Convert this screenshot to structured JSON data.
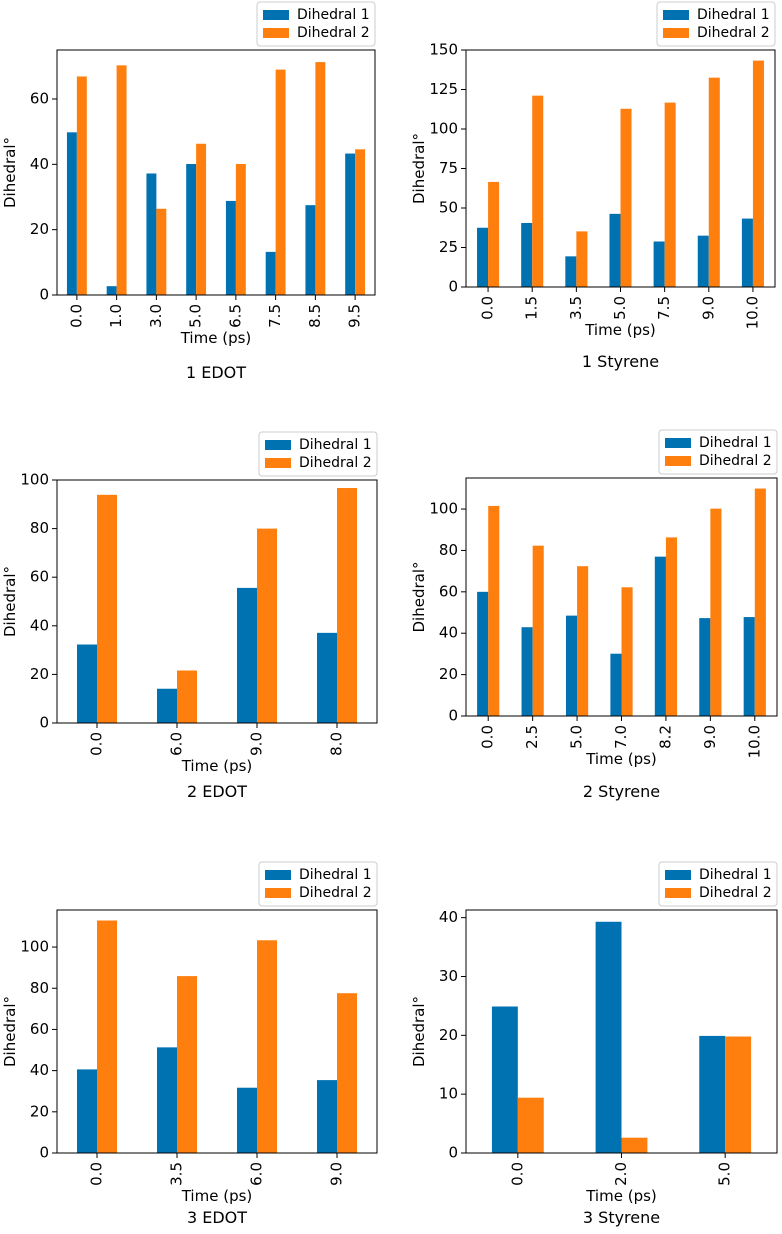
{
  "colors": {
    "dihedral_1": "#0072b2",
    "dihedral_2": "#ff7f0e"
  },
  "chart_data": [
    {
      "type": "bar",
      "caption": "1 EDOT",
      "xlabel": "Time (ps)",
      "ylabel": "Dihedral°",
      "ylim": [
        0,
        75
      ],
      "yticks": [
        0,
        20,
        40,
        60
      ],
      "legend_position": "top-right",
      "categories": [
        "0.0",
        "1.0",
        "3.0",
        "5.0",
        "6.5",
        "7.5",
        "8.5",
        "9.5"
      ],
      "series": [
        {
          "name": "Dihedral 1",
          "values": [
            49.8,
            2.7,
            37.2,
            40.1,
            28.8,
            13.2,
            27.5,
            43.3
          ]
        },
        {
          "name": "Dihedral 2",
          "values": [
            66.9,
            70.3,
            26.4,
            46.3,
            40.1,
            69.0,
            71.3,
            44.6
          ]
        }
      ]
    },
    {
      "type": "bar",
      "caption": "1 Styrene",
      "xlabel": "Time (ps)",
      "ylabel": "Dihedral°",
      "ylim": [
        0,
        150
      ],
      "yticks": [
        0,
        25,
        50,
        75,
        100,
        125,
        150
      ],
      "legend_position": "top-right",
      "categories": [
        "0.0",
        "1.5",
        "3.5",
        "5.0",
        "7.5",
        "9.0",
        "10.0"
      ],
      "series": [
        {
          "name": "Dihedral 1",
          "values": [
            37.5,
            40.5,
            19.4,
            46.3,
            28.8,
            32.5,
            43.3
          ]
        },
        {
          "name": "Dihedral 2",
          "values": [
            66.5,
            121.1,
            35.2,
            112.8,
            116.7,
            132.5,
            143.3
          ]
        }
      ]
    },
    {
      "type": "bar",
      "caption": "2 EDOT",
      "xlabel": "Time (ps)",
      "ylabel": "Dihedral°",
      "ylim": [
        0,
        100
      ],
      "yticks": [
        0,
        20,
        40,
        60,
        80,
        100
      ],
      "legend_position": "top-right",
      "categories": [
        "0.0",
        "6.0",
        "9.0",
        "8.0"
      ],
      "series": [
        {
          "name": "Dihedral 1",
          "values": [
            32.3,
            14.1,
            55.6,
            37.1
          ]
        },
        {
          "name": "Dihedral 2",
          "values": [
            93.9,
            21.6,
            80.0,
            96.7
          ]
        }
      ]
    },
    {
      "type": "bar",
      "caption": "2 Styrene",
      "xlabel": "Time (ps)",
      "ylabel": "Dihedral°",
      "ylim": [
        0,
        115
      ],
      "yticks": [
        0,
        20,
        40,
        60,
        80,
        100
      ],
      "legend_position": "top-right",
      "categories": [
        "0.0",
        "2.5",
        "5.0",
        "7.0",
        "8.2",
        "9.0",
        "10.0"
      ],
      "series": [
        {
          "name": "Dihedral 1",
          "values": [
            60.0,
            42.9,
            48.5,
            30.1,
            77.0,
            47.3,
            47.8
          ]
        },
        {
          "name": "Dihedral 2",
          "values": [
            101.5,
            82.3,
            72.4,
            62.2,
            86.3,
            100.2,
            109.9
          ]
        }
      ]
    },
    {
      "type": "bar",
      "caption": "3 EDOT",
      "xlabel": "Time (ps)",
      "ylabel": "Dihedral°",
      "ylim": [
        0,
        118
      ],
      "yticks": [
        0,
        20,
        40,
        60,
        80,
        100
      ],
      "legend_position": "top-right",
      "categories": [
        "0.0",
        "3.5",
        "6.0",
        "9.0"
      ],
      "series": [
        {
          "name": "Dihedral 1",
          "values": [
            40.6,
            51.3,
            31.7,
            35.4
          ]
        },
        {
          "name": "Dihedral 2",
          "values": [
            112.9,
            85.9,
            103.3,
            77.6
          ]
        }
      ]
    },
    {
      "type": "bar",
      "caption": "3 Styrene",
      "xlabel": "Time (ps)",
      "ylabel": "Dihedral°",
      "ylim": [
        0,
        41.3
      ],
      "yticks": [
        0,
        10,
        20,
        30,
        40
      ],
      "legend_position": "top-right",
      "categories": [
        "0.0",
        "2.0",
        "5.0"
      ],
      "series": [
        {
          "name": "Dihedral 1",
          "values": [
            24.9,
            39.3,
            19.9
          ]
        },
        {
          "name": "Dihedral 2",
          "values": [
            9.4,
            2.6,
            19.8
          ]
        }
      ]
    }
  ]
}
